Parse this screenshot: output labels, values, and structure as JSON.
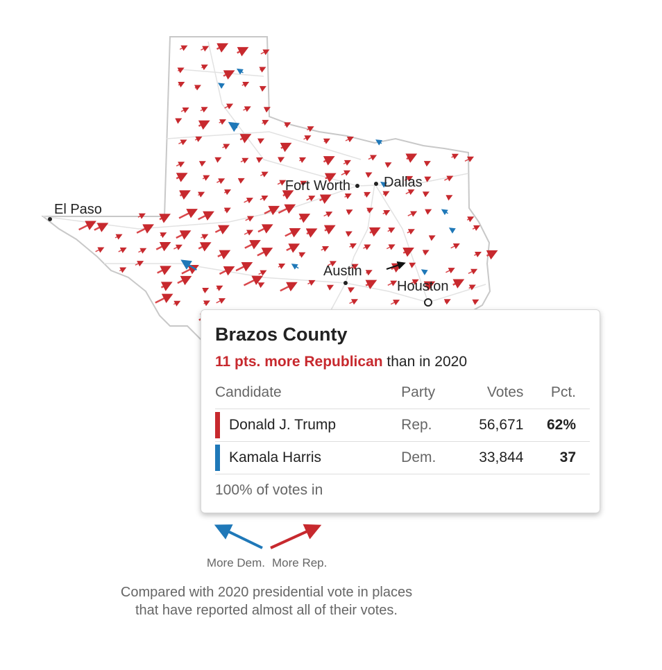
{
  "map": {
    "cities": [
      "El Paso",
      "Fort Worth",
      "Dallas",
      "Austin",
      "Houston"
    ],
    "legend": {
      "dem": "More Dem.",
      "rep": "More Rep."
    },
    "caption": [
      "Compared with 2020 presidential vote in places",
      "that have reported almost all of their votes."
    ]
  },
  "tooltip": {
    "title": "Brazos County",
    "shift": "11 pts. more Republican",
    "shift_suffix": "than in 2020",
    "columns": [
      "Candidate",
      "Party",
      "Votes",
      "Pct."
    ],
    "rows": [
      [
        "Donald J. Trump",
        "Rep.",
        "56,671",
        "62%"
      ],
      [
        "Kamala Harris",
        "Dem.",
        "33,844",
        "37"
      ]
    ],
    "footer": "100% of votes in"
  }
}
